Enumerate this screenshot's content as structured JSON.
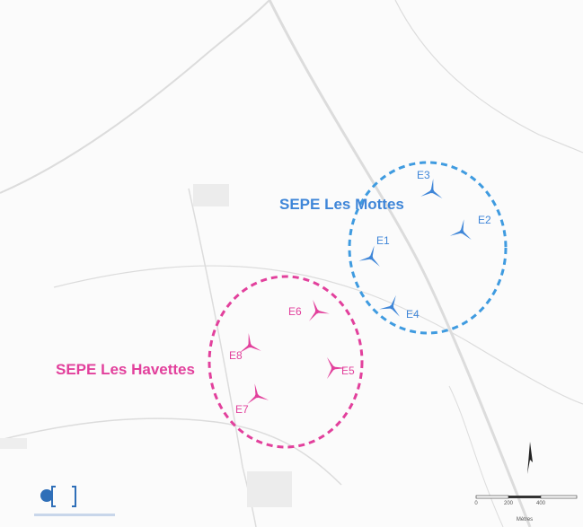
{
  "map": {
    "farms": [
      {
        "name": "SEPE Les Mottes",
        "turbines": [
          "E1",
          "E2",
          "E3",
          "E4"
        ]
      },
      {
        "name": "SEPE Les Havettes",
        "turbines": [
          "E5",
          "E6",
          "E7",
          "E8"
        ]
      }
    ],
    "scale": {
      "ticks": [
        "0",
        "200",
        "400"
      ],
      "unit": "Mètres"
    }
  }
}
